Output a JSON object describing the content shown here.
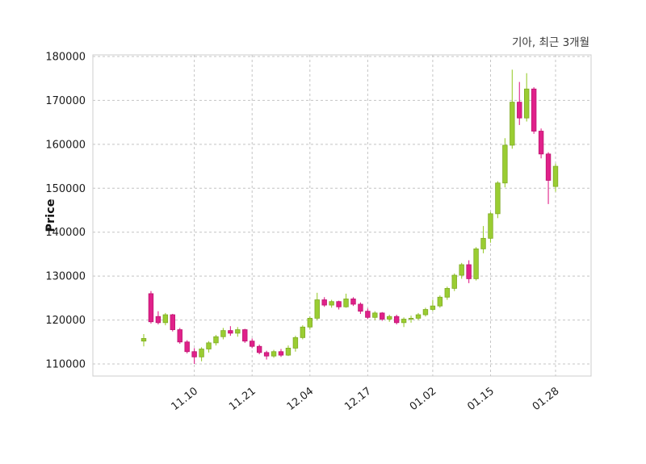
{
  "title": "기아, 최근 3개월",
  "colors": {
    "up": "#9acd32",
    "up_edge": "#7fab25",
    "down": "#e0218a",
    "down_edge": "#bd146f",
    "grid": "#c4c4c4",
    "border": "#cccccc",
    "tick_text": "#1a1a1a",
    "title_text": "#3a3a3a"
  },
  "chart_data": {
    "type": "candlestick",
    "title": "기아, 최근 3개월",
    "xlabel": "",
    "ylabel": "Price",
    "ylim": [
      110000,
      180000
    ],
    "grid": "dashed",
    "legend_position": "none",
    "y_ticks": [
      110000,
      120000,
      130000,
      140000,
      150000,
      160000,
      170000,
      180000
    ],
    "x_tick_labels": [
      "11.10",
      "11.21",
      "12.04",
      "12.17",
      "01.02",
      "01.15",
      "01.28"
    ],
    "x_tick_indices": [
      7,
      15,
      23,
      31,
      40,
      48,
      57
    ],
    "series_note": "candles are [open, high, low, close] in KRW",
    "candles": [
      [
        115200,
        116800,
        114000,
        115800
      ],
      [
        126000,
        126600,
        119200,
        119600
      ],
      [
        120800,
        122000,
        119000,
        119400
      ],
      [
        119400,
        121600,
        118800,
        121200
      ],
      [
        121200,
        121400,
        117400,
        117800
      ],
      [
        117800,
        118200,
        114600,
        115000
      ],
      [
        115000,
        115400,
        112400,
        112800
      ],
      [
        112800,
        113600,
        110000,
        111600
      ],
      [
        111600,
        113800,
        110600,
        113400
      ],
      [
        113400,
        115200,
        112600,
        114800
      ],
      [
        114800,
        116600,
        114200,
        116200
      ],
      [
        116200,
        118200,
        115600,
        117600
      ],
      [
        117600,
        118600,
        116400,
        117000
      ],
      [
        117000,
        118400,
        116200,
        117800
      ],
      [
        117800,
        118000,
        114800,
        115200
      ],
      [
        115200,
        115800,
        113600,
        114000
      ],
      [
        114000,
        114400,
        112200,
        112600
      ],
      [
        112600,
        113000,
        111000,
        111800
      ],
      [
        111800,
        113200,
        111400,
        112800
      ],
      [
        112800,
        113400,
        111600,
        112000
      ],
      [
        112000,
        114200,
        111800,
        113600
      ],
      [
        113600,
        116400,
        112800,
        116000
      ],
      [
        116000,
        118800,
        115600,
        118400
      ],
      [
        118400,
        120800,
        117800,
        120400
      ],
      [
        120400,
        126200,
        120000,
        124600
      ],
      [
        124600,
        125200,
        123000,
        123400
      ],
      [
        123400,
        124600,
        122800,
        124200
      ],
      [
        124200,
        124400,
        122400,
        123000
      ],
      [
        123000,
        126000,
        122800,
        124800
      ],
      [
        124800,
        125200,
        123200,
        123600
      ],
      [
        123600,
        124000,
        121400,
        122000
      ],
      [
        122000,
        122600,
        120200,
        120600
      ],
      [
        120600,
        122000,
        120000,
        121600
      ],
      [
        121600,
        121800,
        119800,
        120200
      ],
      [
        120200,
        121200,
        119600,
        120800
      ],
      [
        120800,
        121200,
        119000,
        119400
      ],
      [
        119400,
        120600,
        118400,
        120200
      ],
      [
        120200,
        121000,
        119400,
        120400
      ],
      [
        120400,
        121600,
        120000,
        121200
      ],
      [
        121200,
        122800,
        120800,
        122400
      ],
      [
        122400,
        124600,
        122000,
        123200
      ],
      [
        123200,
        125600,
        122800,
        125200
      ],
      [
        125200,
        127600,
        124600,
        127200
      ],
      [
        127200,
        130600,
        126600,
        130200
      ],
      [
        130200,
        133000,
        129400,
        132600
      ],
      [
        132600,
        133600,
        128400,
        129400
      ],
      [
        129400,
        136600,
        129000,
        136200
      ],
      [
        136200,
        141400,
        135200,
        138600
      ],
      [
        138600,
        144600,
        137600,
        144200
      ],
      [
        144200,
        151600,
        143200,
        151200
      ],
      [
        151200,
        161400,
        150200,
        159800
      ],
      [
        159800,
        177000,
        159000,
        169600
      ],
      [
        169600,
        174200,
        164400,
        166000
      ],
      [
        166000,
        176200,
        165200,
        172600
      ],
      [
        172600,
        173000,
        162400,
        163000
      ],
      [
        163000,
        163600,
        156800,
        157800
      ],
      [
        157800,
        158200,
        146400,
        151800
      ],
      [
        150400,
        155600,
        149200,
        155000
      ]
    ]
  }
}
